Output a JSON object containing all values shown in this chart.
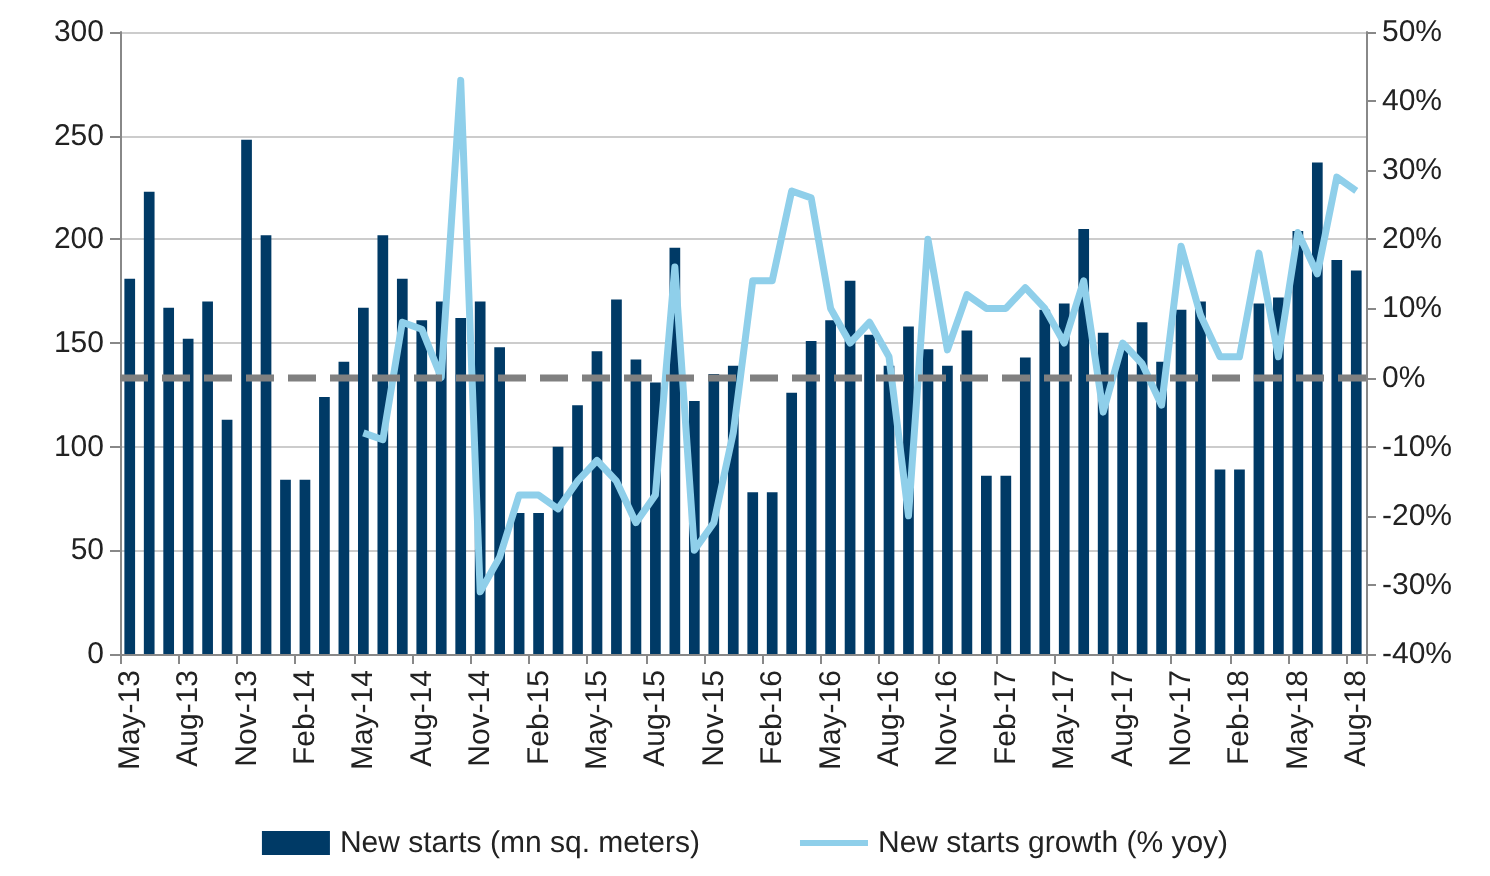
{
  "chart_data": {
    "type": "bar",
    "categories": [
      "May-13",
      null,
      null,
      "Aug-13",
      null,
      null,
      "Nov-13",
      null,
      null,
      "Feb-14",
      null,
      null,
      "May-14",
      null,
      null,
      "Aug-14",
      null,
      null,
      "Nov-14",
      null,
      null,
      "Feb-15",
      null,
      null,
      "May-15",
      null,
      null,
      "Aug-15",
      null,
      null,
      "Nov-15",
      null,
      null,
      "Feb-16",
      null,
      null,
      "May-16",
      null,
      null,
      "Aug-16",
      null,
      null,
      "Nov-16",
      null,
      null,
      "Feb-17",
      null,
      null,
      "May-17",
      null,
      null,
      "Aug-17",
      null,
      null,
      "Nov-17",
      null,
      null,
      "Feb-18",
      null,
      null,
      "May-18",
      null,
      null,
      "Aug-18"
    ],
    "series": [
      {
        "name": "New starts (mn sq. meters)",
        "color": "#003a66",
        "values": [
          181,
          223,
          167,
          152,
          170,
          113,
          248,
          202,
          84,
          84,
          124,
          141,
          167,
          202,
          181,
          161,
          170,
          162,
          170,
          148,
          68,
          68,
          100,
          120,
          146,
          171,
          142,
          131,
          196,
          122,
          135,
          139,
          78,
          78,
          126,
          151,
          161,
          180,
          154,
          139,
          158,
          147,
          139,
          156,
          86,
          86,
          143,
          166,
          169,
          205,
          155,
          147,
          160,
          141,
          166,
          170,
          89,
          89,
          169,
          172,
          204,
          237,
          190,
          185
        ]
      },
      {
        "name": "New starts growth (% yoy)",
        "type": "line",
        "axis": "y2",
        "color": "#8fcfea",
        "values": [
          null,
          null,
          null,
          null,
          null,
          null,
          null,
          null,
          null,
          null,
          null,
          null,
          -8,
          -9,
          8,
          7,
          0,
          43,
          -31,
          -26,
          -17,
          -17,
          -19,
          -15,
          -12,
          -15,
          -21,
          -17,
          16,
          -25,
          -21,
          -8,
          14,
          14,
          27,
          26,
          10,
          5,
          8,
          3,
          -20,
          20,
          4,
          12,
          10,
          10,
          13,
          10,
          5,
          14,
          -5,
          5,
          2,
          -4,
          19,
          9,
          3,
          3,
          18,
          3,
          21,
          15,
          29,
          27
        ]
      }
    ],
    "ylim": [
      0,
      300
    ],
    "yticks": [
      0,
      50,
      100,
      150,
      200,
      250,
      300
    ],
    "y2lim": [
      -40,
      50
    ],
    "y2ticks": [
      {
        "value": -40,
        "label": "-40%"
      },
      {
        "value": -30,
        "label": "-30%"
      },
      {
        "value": -20,
        "label": "-20%"
      },
      {
        "value": -10,
        "label": "-10%"
      },
      {
        "value": 0,
        "label": "0%"
      },
      {
        "value": 10,
        "label": "10%"
      },
      {
        "value": 20,
        "label": "20%"
      },
      {
        "value": 30,
        "label": "30%"
      },
      {
        "value": 40,
        "label": "40%"
      },
      {
        "value": 50,
        "label": "50%"
      }
    ],
    "ref_lines": [
      {
        "axis": "y2",
        "value": 0,
        "color": "#808080",
        "line_style": "dashed"
      }
    ],
    "grid": "y",
    "legend": "bottom",
    "marker": "none",
    "line_style": "solid"
  }
}
